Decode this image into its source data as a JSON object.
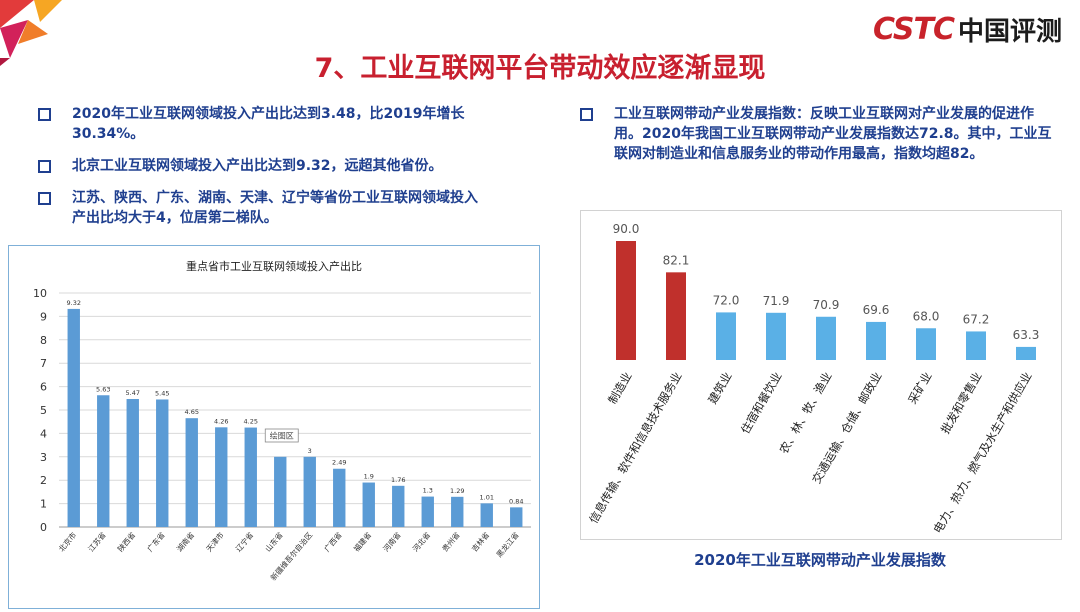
{
  "brand": {
    "logo_latin": "CSTC",
    "logo_cn": "中国评测",
    "accent": "#c8232b"
  },
  "title": "7、工业互联网平台带动效应逐渐显现",
  "left_bullets": [
    "2020年工业互联网领域投入产出比达到3.48，比2019年增长30.34%。",
    "北京工业互联网领域投入产出比达到9.32，远超其他省份。",
    "江苏、陕西、广东、湖南、天津、辽宁等省份工业互联网领域投入产出比均大于4，位居第二梯队。"
  ],
  "right_bullets": [
    "工业互联网带动产业发展指数：反映工业互联网对产业发展的促进作用。2020年我国工业互联网带动产业发展指数达72.8。其中，工业互联网对制造业和信息服务业的带动作用最高，指数均超82。"
  ],
  "chart_data": [
    {
      "type": "bar",
      "title": "重点省市工业互联网领域投入产出比",
      "categories": [
        "北京市",
        "江苏省",
        "陕西省",
        "广东省",
        "湖南省",
        "天津市",
        "辽宁省",
        "山东省",
        "新疆维吾尔自治区",
        "广西省",
        "福建省",
        "河南省",
        "河北省",
        "贵州省",
        "吉林省",
        "黑龙江省"
      ],
      "values": [
        9.32,
        5.63,
        5.47,
        5.45,
        4.65,
        4.26,
        4.25,
        3,
        3,
        2.49,
        1.9,
        1.76,
        1.3,
        1.29,
        1.01,
        0.84
      ],
      "value_labels": [
        "9.32",
        "5.63",
        "5.47",
        "5.45",
        "4.65",
        "4.26",
        "4.25",
        "",
        "3",
        "2.49",
        "1.9",
        "1.76",
        "1.3",
        "1.29",
        "1.01",
        "0.84"
      ],
      "yticks": [
        "0",
        "1",
        "2",
        "3",
        "4",
        "5",
        "6",
        "7",
        "8",
        "9",
        "10"
      ],
      "ylim": [
        0,
        10
      ],
      "grid": true,
      "color": "#5b9bd5",
      "tooltip": "绘图区"
    },
    {
      "type": "bar",
      "title": "2020年工业互联网带动产业发展指数",
      "categories": [
        "制造业",
        "信息传输、软件和信息技术服务业",
        "建筑业",
        "住宿和餐饮业",
        "农、林、牧、渔业",
        "交通运输、仓储、邮政业",
        "采矿业",
        "批发和零售业",
        "电力、热力、燃气及水生产和供应业"
      ],
      "values": [
        90.0,
        82.1,
        72.0,
        71.9,
        70.9,
        69.6,
        68.0,
        67.2,
        63.3
      ],
      "value_labels": [
        "90.0",
        "82.1",
        "72.0",
        "71.9",
        "70.9",
        "69.6",
        "68.0",
        "67.2",
        "63.3"
      ],
      "highlight_color": "#c0302c",
      "color": "#5ab0e6",
      "highlight_count": 2
    }
  ]
}
